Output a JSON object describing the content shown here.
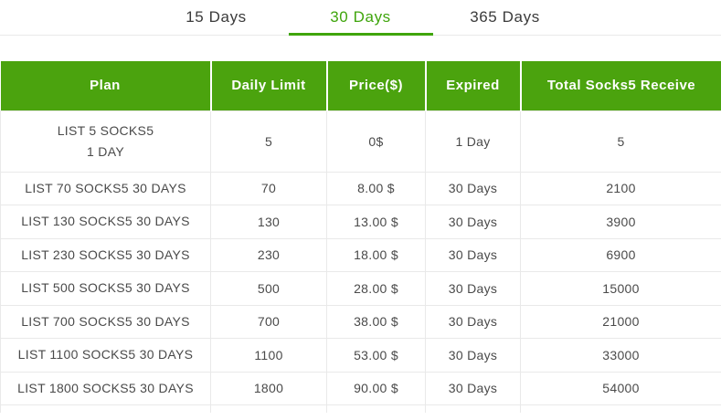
{
  "colors": {
    "accent_green": "#3fa50c",
    "header_background": "#4ba30e",
    "header_text": "#ffffff",
    "body_text": "#4a4a4a",
    "tab_inactive_text": "#3b3b3b",
    "border": "#e9e9e9"
  },
  "tabs": [
    {
      "id": "15-days",
      "label": "15 Days",
      "active": false
    },
    {
      "id": "30-days",
      "label": "30 Days",
      "active": true
    },
    {
      "id": "365-days",
      "label": "365 Days",
      "active": false
    }
  ],
  "table": {
    "columns": [
      {
        "key": "plan",
        "label": "Plan"
      },
      {
        "key": "daily_limit",
        "label": "Daily Limit"
      },
      {
        "key": "price",
        "label": "Price($)"
      },
      {
        "key": "expired",
        "label": "Expired"
      },
      {
        "key": "total",
        "label": "Total Socks5 Receive"
      }
    ],
    "rows": [
      {
        "plan": "LIST 5 SOCKS5\n1 DAY",
        "daily_limit": "5",
        "price": "0$",
        "expired": "1 Day",
        "total": "5"
      },
      {
        "plan": "LIST 70 SOCKS5 30 DAYS",
        "daily_limit": "70",
        "price": "8.00 $",
        "expired": "30 Days",
        "total": "2100"
      },
      {
        "plan": "LIST 130 SOCKS5 30 DAYS",
        "daily_limit": "130",
        "price": "13.00 $",
        "expired": "30 Days",
        "total": "3900"
      },
      {
        "plan": "LIST 230 SOCKS5 30 DAYS",
        "daily_limit": "230",
        "price": "18.00 $",
        "expired": "30 Days",
        "total": "6900"
      },
      {
        "plan": "LIST 500 SOCKS5 30 DAYS",
        "daily_limit": "500",
        "price": "28.00 $",
        "expired": "30 Days",
        "total": "15000"
      },
      {
        "plan": "LIST 700 SOCKS5 30 DAYS",
        "daily_limit": "700",
        "price": "38.00 $",
        "expired": "30 Days",
        "total": "21000"
      },
      {
        "plan": "LIST 1100 SOCKS5 30 DAYS",
        "daily_limit": "1100",
        "price": "53.00 $",
        "expired": "30 Days",
        "total": "33000"
      },
      {
        "plan": "LIST 1800 SOCKS5 30 DAYS",
        "daily_limit": "1800",
        "price": "90.00 $",
        "expired": "30 Days",
        "total": "54000"
      }
    ]
  }
}
